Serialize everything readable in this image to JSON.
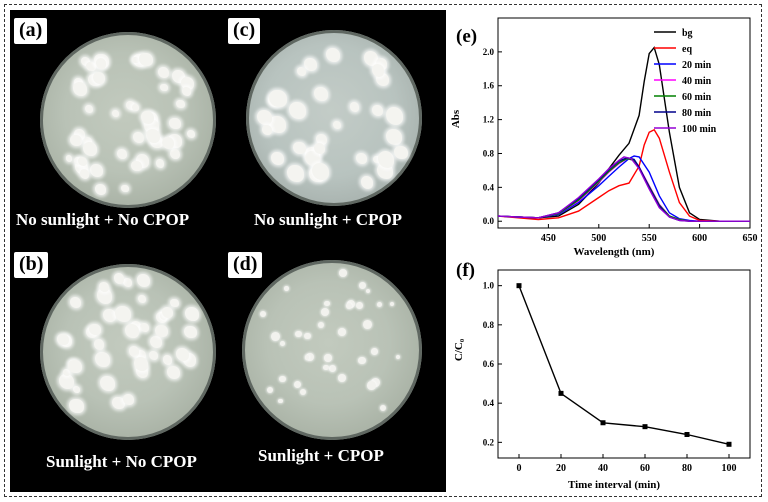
{
  "photos": {
    "a": {
      "tag": "(a)",
      "caption": "No sunlight + No CPOP"
    },
    "b": {
      "tag": "(b)",
      "caption": "Sunlight + No CPOP"
    },
    "c": {
      "tag": "(c)",
      "caption": "No sunlight + CPOP"
    },
    "d": {
      "tag": "(d)",
      "caption": "Sunlight + CPOP"
    }
  },
  "chart_data": [
    {
      "panel": "(e)",
      "type": "line",
      "xlabel": "Wavelength (nm)",
      "ylabel": "Abs",
      "xlim": [
        400,
        650
      ],
      "ylim": [
        -0.08,
        2.4
      ],
      "xticks": [
        450,
        500,
        550,
        600,
        650
      ],
      "yticks": [
        0.0,
        0.4,
        0.8,
        1.2,
        1.6,
        2.0
      ],
      "legend": "top-right",
      "series": [
        {
          "name": "bg",
          "color": "#000000",
          "x": [
            400,
            420,
            440,
            460,
            480,
            500,
            510,
            520,
            530,
            540,
            545,
            550,
            555,
            560,
            570,
            580,
            590,
            600,
            620,
            650
          ],
          "y": [
            0.06,
            0.05,
            0.04,
            0.06,
            0.2,
            0.45,
            0.62,
            0.78,
            0.92,
            1.25,
            1.65,
            1.98,
            2.05,
            1.85,
            1.05,
            0.4,
            0.1,
            0.02,
            0.0,
            0.0
          ]
        },
        {
          "name": "eq",
          "color": "#ff0000",
          "x": [
            400,
            420,
            440,
            460,
            480,
            500,
            510,
            520,
            530,
            540,
            545,
            550,
            555,
            560,
            570,
            580,
            590,
            600,
            620,
            650
          ],
          "y": [
            0.06,
            0.04,
            0.02,
            0.04,
            0.12,
            0.28,
            0.36,
            0.42,
            0.45,
            0.65,
            0.9,
            1.05,
            1.08,
            0.98,
            0.58,
            0.22,
            0.06,
            0.01,
            0.0,
            0.0
          ]
        },
        {
          "name": "20 min",
          "color": "#0000ff",
          "x": [
            400,
            420,
            440,
            460,
            480,
            500,
            510,
            520,
            530,
            535,
            540,
            550,
            560,
            570,
            580,
            590,
            600,
            620,
            650
          ],
          "y": [
            0.06,
            0.05,
            0.04,
            0.08,
            0.22,
            0.42,
            0.53,
            0.64,
            0.74,
            0.77,
            0.76,
            0.58,
            0.3,
            0.1,
            0.03,
            0.01,
            0.0,
            0.0,
            0.0
          ]
        },
        {
          "name": "40 min",
          "color": "#ff00ff",
          "x": [
            400,
            420,
            440,
            460,
            480,
            500,
            510,
            520,
            528,
            535,
            540,
            550,
            560,
            570,
            580,
            590,
            600,
            620,
            650
          ],
          "y": [
            0.06,
            0.05,
            0.04,
            0.09,
            0.24,
            0.46,
            0.58,
            0.68,
            0.74,
            0.72,
            0.64,
            0.42,
            0.2,
            0.06,
            0.02,
            0.0,
            0.0,
            0.0,
            0.0
          ]
        },
        {
          "name": "60 min",
          "color": "#008000",
          "x": [
            400,
            420,
            440,
            460,
            480,
            500,
            510,
            520,
            528,
            535,
            540,
            550,
            560,
            570,
            580,
            590,
            600,
            620,
            650
          ],
          "y": [
            0.06,
            0.05,
            0.04,
            0.09,
            0.25,
            0.47,
            0.59,
            0.69,
            0.74,
            0.72,
            0.63,
            0.41,
            0.19,
            0.06,
            0.02,
            0.0,
            0.0,
            0.0,
            0.0
          ]
        },
        {
          "name": "80 min",
          "color": "#00008b",
          "x": [
            400,
            420,
            440,
            460,
            480,
            500,
            510,
            520,
            528,
            535,
            540,
            550,
            560,
            570,
            580,
            590,
            600,
            620,
            650
          ],
          "y": [
            0.06,
            0.05,
            0.04,
            0.1,
            0.27,
            0.49,
            0.61,
            0.71,
            0.75,
            0.73,
            0.64,
            0.4,
            0.18,
            0.05,
            0.01,
            0.0,
            0.0,
            0.0,
            0.0
          ]
        },
        {
          "name": "100 min",
          "color": "#9400d3",
          "x": [
            400,
            420,
            440,
            460,
            480,
            500,
            510,
            520,
            525,
            532,
            540,
            550,
            560,
            570,
            580,
            590,
            600,
            620,
            650
          ],
          "y": [
            0.06,
            0.05,
            0.04,
            0.1,
            0.28,
            0.5,
            0.62,
            0.72,
            0.76,
            0.74,
            0.62,
            0.38,
            0.16,
            0.05,
            0.01,
            0.0,
            0.0,
            0.0,
            0.0
          ]
        }
      ]
    },
    {
      "panel": "(f)",
      "type": "line",
      "xlabel": "Time interval (min)",
      "ylabel": "C/C₀",
      "xlim": [
        -10,
        110
      ],
      "ylim": [
        0.12,
        1.08
      ],
      "xticks": [
        0,
        20,
        40,
        60,
        80,
        100
      ],
      "yticks": [
        0.2,
        0.4,
        0.6,
        0.8,
        1.0
      ],
      "series": [
        {
          "name": "C/C0",
          "color": "#000000",
          "x": [
            0,
            20,
            40,
            60,
            80,
            100
          ],
          "y": [
            1.0,
            0.45,
            0.3,
            0.28,
            0.24,
            0.19
          ]
        }
      ]
    }
  ]
}
